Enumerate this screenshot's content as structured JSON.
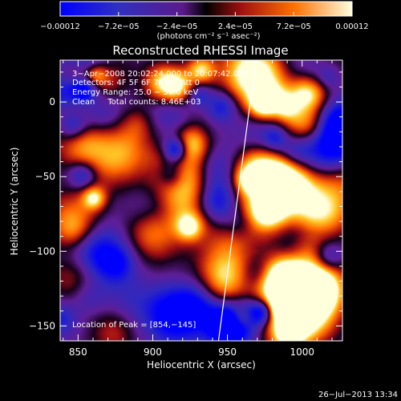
{
  "chart_data": {
    "type": "heatmap",
    "title": "Reconstructed RHESSI Image",
    "xlabel": "Heliocentric X (arcsec)",
    "ylabel": "Heliocentric Y (arcsec)",
    "xlim": [
      838,
      1027
    ],
    "ylim": [
      -160,
      28
    ],
    "xticks": [
      850,
      900,
      950,
      1000
    ],
    "xtick_labels": [
      "850",
      "900",
      "950",
      "1000"
    ],
    "yticks": [
      0,
      -50,
      -100,
      -150
    ],
    "ytick_labels": [
      "0",
      "−50",
      "−100",
      "−150"
    ],
    "colorbar": {
      "min": -0.00012,
      "max": 0.00012,
      "tick_labels": [
        "−0.00012",
        "−7.2e−05",
        "−2.4e−05",
        "2.4e−05",
        "7.2e−05",
        "0.00012"
      ],
      "units": "(photons cm⁻² s⁻¹ asec⁻²)"
    },
    "annotations": [
      "3−Apr−2008 20:02:24.000 to 20:07:42.000",
      "Detectors: 4F 5F 6F 7F 8F, Att 0",
      "Energy Range: 25.0 − 50.0 keV",
      "Clean     Total counts: 8.46E+03",
      "Location of Peak = [854,−145]"
    ],
    "peak_location": [
      854,
      -145
    ],
    "limb_line": [
      [
        969,
        28
      ],
      [
        944,
        -160
      ]
    ],
    "date_stamp": "26−Jul−2013 13:34",
    "grid": false,
    "legend": "none"
  }
}
